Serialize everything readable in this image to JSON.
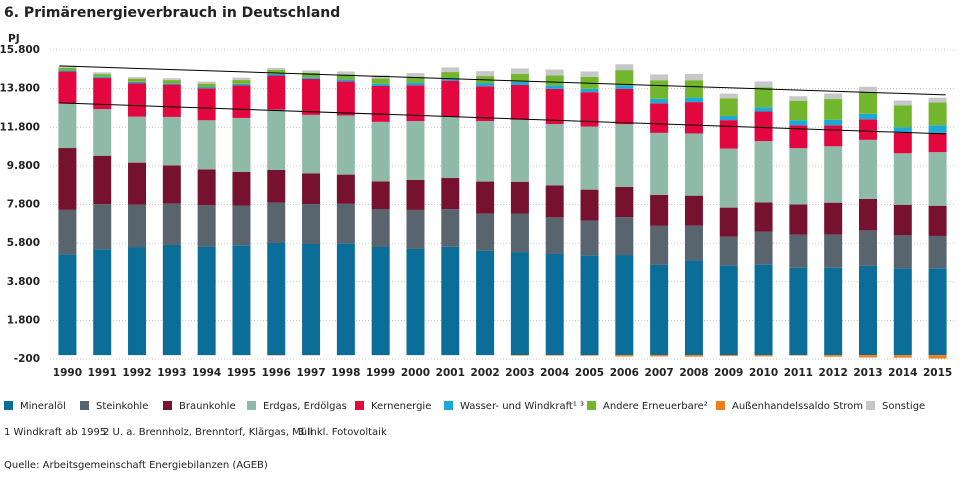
{
  "chart_data": {
    "type": "stacked-bar",
    "title": "6. Primärenergieverbrauch in Deutschland",
    "y_label": "PJ",
    "categories": [
      "1990",
      "1991",
      "1992",
      "1993",
      "1994",
      "1995",
      "1996",
      "1997",
      "1998",
      "1999",
      "2000",
      "2001",
      "2002",
      "2003",
      "2004",
      "2005",
      "2006",
      "2007",
      "2008",
      "2009",
      "2010",
      "2011",
      "2012",
      "2013",
      "2014",
      "2015"
    ],
    "series": [
      {
        "name": "Mineralöl",
        "color": "#0a6e99",
        "values": [
          5217,
          5486,
          5596,
          5704,
          5620,
          5689,
          5808,
          5755,
          5775,
          5599,
          5499,
          5611,
          5398,
          5336,
          5238,
          5166,
          5182,
          4673,
          4904,
          4635,
          4684,
          4527,
          4525,
          4620,
          4492,
          4499
        ]
      },
      {
        "name": "Steinkohle",
        "color": "#58646e",
        "values": [
          2306,
          2330,
          2196,
          2139,
          2139,
          2060,
          2090,
          2065,
          2059,
          1967,
          2021,
          1949,
          1927,
          1999,
          1898,
          1808,
          1960,
          2021,
          1800,
          1497,
          1714,
          1715,
          1725,
          1840,
          1729,
          1673
        ]
      },
      {
        "name": "Braunkohle",
        "color": "#76122f",
        "values": [
          3201,
          2508,
          2176,
          1983,
          1861,
          1734,
          1688,
          1595,
          1514,
          1433,
          1550,
          1611,
          1662,
          1639,
          1648,
          1596,
          1564,
          1607,
          1554,
          1507,
          1512,
          1564,
          1645,
          1629,
          1565,
          1565
        ]
      },
      {
        "name": "Erdgas, Erdölgas",
        "color": "#8fb9a8",
        "values": [
          2293,
          2415,
          2382,
          2509,
          2541,
          2799,
          3128,
          3027,
          3063,
          3082,
          3054,
          3174,
          3137,
          3213,
          3179,
          3266,
          3253,
          3208,
          3221,
          3057,
          3171,
          2911,
          2920,
          3058,
          2665,
          2776
        ]
      },
      {
        "name": "Kernenergie",
        "color": "#e3073f",
        "values": [
          1668,
          1609,
          1733,
          1675,
          1650,
          1682,
          1764,
          1859,
          1764,
          1855,
          1851,
          1868,
          1798,
          1801,
          1822,
          1779,
          1826,
          1533,
          1623,
          1472,
          1533,
          1178,
          1085,
          1061,
          1060,
          1001
        ]
      },
      {
        "name": "Wasser- und Windkraft¹ ³",
        "color": "#1ba9d6",
        "values": [
          58,
          62,
          68,
          68,
          74,
          88,
          85,
          91,
          104,
          117,
          135,
          134,
          167,
          160,
          184,
          173,
          184,
          231,
          232,
          213,
          218,
          269,
          289,
          288,
          293,
          390
        ]
      },
      {
        "name": "Andere Erneuerbare²",
        "color": "#72b62d",
        "values": [
          138,
          140,
          150,
          160,
          170,
          190,
          200,
          230,
          260,
          270,
          282,
          310,
          360,
          420,
          520,
          620,
          790,
          960,
          900,
          920,
          1040,
          1010,
          1070,
          1120,
          1130,
          1180
        ]
      },
      {
        "name": "Außenhandelssaldo Strom",
        "color": "#ef7d1a",
        "values": [
          3,
          3,
          17,
          11,
          12,
          17,
          -19,
          -8,
          0,
          -5,
          11,
          10,
          6,
          -28,
          -26,
          -31,
          -71,
          -68,
          -81,
          -51,
          -64,
          -23,
          -83,
          -122,
          -129,
          -174
        ]
      },
      {
        "name": "Sonstige",
        "color": "#c5c7c9",
        "values": [
          100,
          90,
          80,
          90,
          100,
          110,
          110,
          120,
          150,
          170,
          200,
          230,
          250,
          280,
          300,
          280,
          300,
          300,
          330,
          240,
          300,
          230,
          290,
          280,
          250,
          250
        ]
      }
    ],
    "ylim": [
      -200,
      15800
    ],
    "yticks": [
      -200,
      {
        "value": 1800,
        "label": "1.800"
      },
      {
        "value": 3800,
        "label": "3.800"
      },
      {
        "value": 5800,
        "label": "5.800"
      },
      {
        "value": 7800,
        "label": "7.800"
      },
      {
        "value": 9800,
        "label": "9.800"
      },
      {
        "value": 11800,
        "label": "11.800"
      },
      {
        "value": 13800,
        "label": "13.800"
      },
      {
        "value": 15800,
        "label": "15.800"
      }
    ],
    "grid": true,
    "trend_lines": [
      {
        "start": 14977,
        "end": 13475
      },
      {
        "start": 13061,
        "end": 11455
      }
    ],
    "footnotes": [
      "1  Windkraft ab 1995",
      "2  U. a. Brennholz, Brenntorf, Klärgas, Müll",
      "3  Inkl. Fotovoltaik"
    ],
    "source": "Quelle: Arbeitsgemeinschaft Energiebilanzen (AGEB)"
  }
}
